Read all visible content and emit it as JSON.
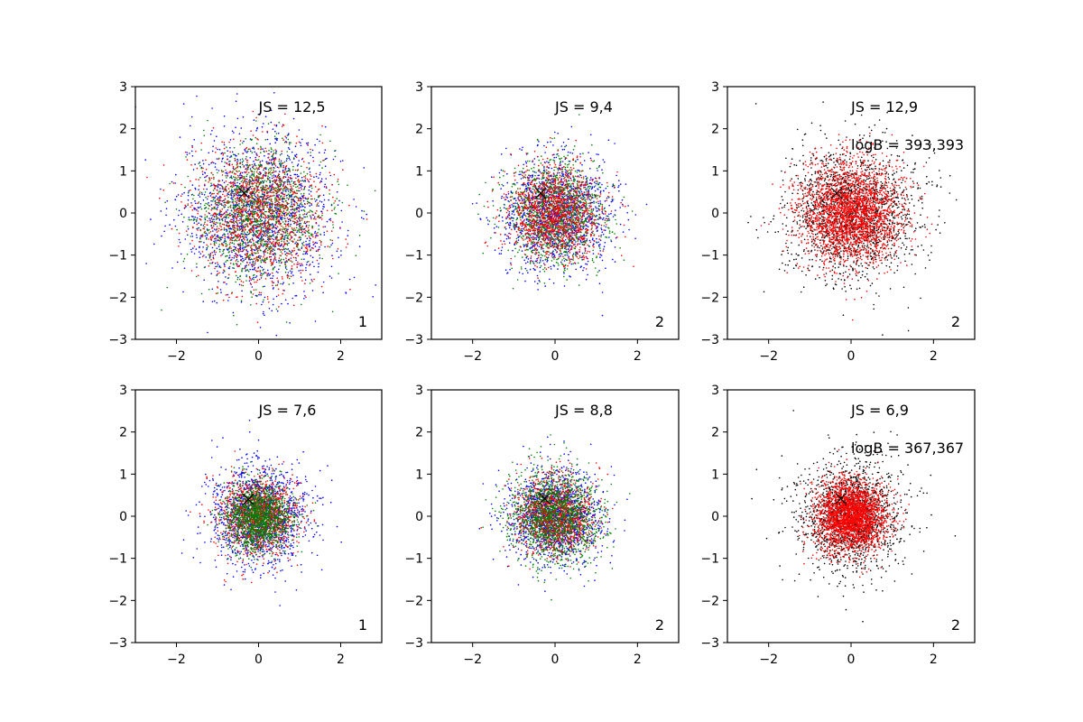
{
  "colors": {
    "blue": "#0000ff",
    "red": "#ff0000",
    "green": "#008000",
    "black": "#000000"
  },
  "chart_data": [
    {
      "type": "scatter",
      "id": "panel-1",
      "xlim": [
        -3,
        3
      ],
      "ylim": [
        -3,
        3
      ],
      "xticks": [
        -2,
        0,
        2
      ],
      "yticks": [
        -3,
        -2,
        -1,
        0,
        1,
        2,
        3
      ],
      "xtick_labels": [
        "−2",
        "0",
        "2"
      ],
      "ytick_labels": [
        "−3",
        "−2",
        "−1",
        "0",
        "1",
        "2",
        "3"
      ],
      "annotations": {
        "js": "JS = 12,5",
        "logb": "",
        "index": "1"
      },
      "marker": {
        "x": -0.35,
        "y": 0.47
      },
      "series": [
        {
          "color": "blue",
          "n": 1500,
          "sigma": 0.95
        },
        {
          "color": "green",
          "n": 1400,
          "sigma": 0.75
        },
        {
          "color": "red",
          "n": 1300,
          "sigma": 0.8
        }
      ],
      "grid": false
    },
    {
      "type": "scatter",
      "id": "panel-2",
      "xlim": [
        -3,
        3
      ],
      "ylim": [
        -3,
        3
      ],
      "xticks": [
        -2,
        0,
        2
      ],
      "yticks": [
        -3,
        -2,
        -1,
        0,
        1,
        2,
        3
      ],
      "xtick_labels": [
        "−2",
        "0",
        "2"
      ],
      "ytick_labels": [
        "−3",
        "−2",
        "−1",
        "0",
        "1",
        "2",
        "3"
      ],
      "annotations": {
        "js": "JS = 9,4",
        "logb": "",
        "index": "2"
      },
      "marker": {
        "x": -0.35,
        "y": 0.47
      },
      "series": [
        {
          "color": "blue",
          "n": 1400,
          "sigma": 0.65
        },
        {
          "color": "green",
          "n": 1300,
          "sigma": 0.6
        },
        {
          "color": "red",
          "n": 1300,
          "sigma": 0.55
        }
      ],
      "grid": false
    },
    {
      "type": "scatter",
      "id": "panel-3",
      "xlim": [
        -3,
        3
      ],
      "ylim": [
        -3,
        3
      ],
      "xticks": [
        -2,
        0,
        2
      ],
      "yticks": [
        -3,
        -2,
        -1,
        0,
        1,
        2,
        3
      ],
      "xtick_labels": [
        "−2",
        "0",
        "2"
      ],
      "ytick_labels": [
        "−3",
        "−2",
        "−1",
        "0",
        "1",
        "2",
        "3"
      ],
      "annotations": {
        "js": "JS = 12,9",
        "logb": "logB = 393,393",
        "index": "2"
      },
      "marker": {
        "x": -0.35,
        "y": 0.47
      },
      "series": [
        {
          "color": "black",
          "n": 1600,
          "sigma": 0.8
        },
        {
          "color": "red",
          "n": 2600,
          "sigma": 0.6
        }
      ],
      "grid": false
    },
    {
      "type": "scatter",
      "id": "panel-4",
      "xlim": [
        -3,
        3
      ],
      "ylim": [
        -3,
        3
      ],
      "xticks": [
        -2,
        0,
        2
      ],
      "yticks": [
        -3,
        -2,
        -1,
        0,
        1,
        2,
        3
      ],
      "xtick_labels": [
        "−2",
        "0",
        "2"
      ],
      "ytick_labels": [
        "−3",
        "−2",
        "−1",
        "0",
        "1",
        "2",
        "3"
      ],
      "annotations": {
        "js": "JS = 7,6",
        "logb": "",
        "index": "1"
      },
      "marker": {
        "x": -0.25,
        "y": 0.4
      },
      "series": [
        {
          "color": "blue",
          "n": 1400,
          "sigma": 0.6
        },
        {
          "color": "red",
          "n": 1300,
          "sigma": 0.45
        },
        {
          "color": "green",
          "n": 1400,
          "sigma": 0.4
        }
      ],
      "grid": false
    },
    {
      "type": "scatter",
      "id": "panel-5",
      "xlim": [
        -3,
        3
      ],
      "ylim": [
        -3,
        3
      ],
      "xticks": [
        -2,
        0,
        2
      ],
      "yticks": [
        -3,
        -2,
        -1,
        0,
        1,
        2,
        3
      ],
      "xtick_labels": [
        "−2",
        "0",
        "2"
      ],
      "ytick_labels": [
        "−3",
        "−2",
        "−1",
        "0",
        "1",
        "2",
        "3"
      ],
      "annotations": {
        "js": "JS = 8,8",
        "logb": "",
        "index": "2"
      },
      "marker": {
        "x": -0.25,
        "y": 0.42
      },
      "series": [
        {
          "color": "blue",
          "n": 1400,
          "sigma": 0.55
        },
        {
          "color": "red",
          "n": 1300,
          "sigma": 0.45
        },
        {
          "color": "green",
          "n": 1400,
          "sigma": 0.55
        }
      ],
      "grid": false
    },
    {
      "type": "scatter",
      "id": "panel-6",
      "xlim": [
        -3,
        3
      ],
      "ylim": [
        -3,
        3
      ],
      "xticks": [
        -2,
        0,
        2
      ],
      "yticks": [
        -3,
        -2,
        -1,
        0,
        1,
        2,
        3
      ],
      "xtick_labels": [
        "−2",
        "0",
        "2"
      ],
      "ytick_labels": [
        "−3",
        "−2",
        "−1",
        "0",
        "1",
        "2",
        "3"
      ],
      "annotations": {
        "js": "JS = 6,9",
        "logb": "logB = 367,367",
        "index": "2"
      },
      "marker": {
        "x": -0.25,
        "y": 0.42
      },
      "series": [
        {
          "color": "black",
          "n": 1500,
          "sigma": 0.65
        },
        {
          "color": "red",
          "n": 2600,
          "sigma": 0.42
        }
      ],
      "grid": false
    }
  ]
}
